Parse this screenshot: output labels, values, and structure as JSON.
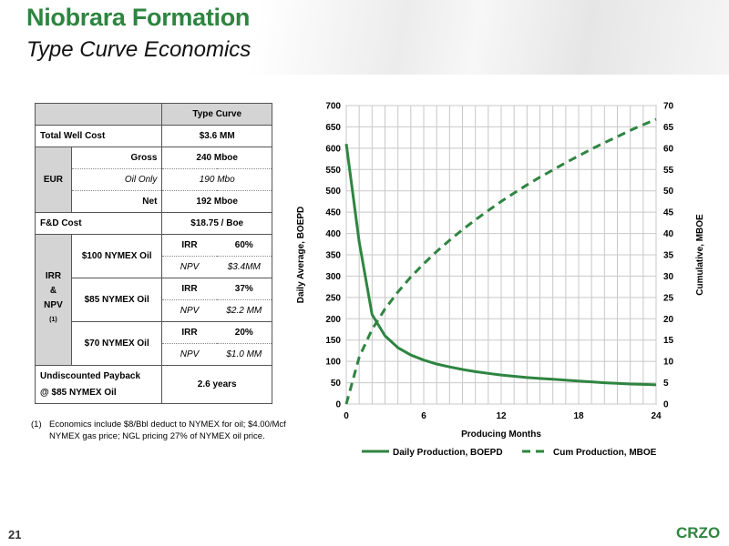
{
  "header": {
    "title": "Niobrara Formation",
    "subtitle": "Type Curve Economics"
  },
  "table": {
    "header_col": "Type Curve",
    "total_well_cost_label": "Total Well Cost",
    "total_well_cost_value": "$3.6 MM",
    "eur_label": "EUR",
    "eur_gross_label": "Gross",
    "eur_gross_value": "240 Mboe",
    "eur_oil_label": "Oil Only",
    "eur_oil_value": "190 Mbo",
    "eur_net_label": "Net",
    "eur_net_value": "192 Mboe",
    "fd_label": "F&D Cost",
    "fd_value": "$18.75 / Boe",
    "irr_group_label_1": "IRR",
    "irr_group_label_2": "&",
    "irr_group_label_3": "NPV",
    "irr_group_sup": "(1)",
    "scenarios": [
      {
        "label": "$100 NYMEX Oil",
        "irr_label": "IRR",
        "irr": "60%",
        "npv_label": "NPV",
        "npv": "$3.4MM"
      },
      {
        "label": "$85 NYMEX Oil",
        "irr_label": "IRR",
        "irr": "37%",
        "npv_label": "NPV",
        "npv": "$2.2 MM"
      },
      {
        "label": "$70 NYMEX Oil",
        "irr_label": "IRR",
        "irr": "20%",
        "npv_label": "NPV",
        "npv": "$1.0 MM"
      }
    ],
    "payback_label_1": "Undiscounted Payback",
    "payback_label_2": "@ $85 NYMEX Oil",
    "payback_value": "2.6 years"
  },
  "footnote": {
    "num": "(1)",
    "text": "Economics include $8/Bbl deduct to NYMEX for oil; $4.00/Mcf NYMEX gas price; NGL pricing 27% of NYMEX oil price."
  },
  "footer": {
    "page_number": "21",
    "logo": "CRZO"
  },
  "colors": {
    "brand_green": "#2e8540",
    "series_green": "#2e8540"
  },
  "chart_data": {
    "type": "line",
    "xlabel": "Producing Months",
    "ylabel": "Daily Average,  BOEPD",
    "y2label": "Cumulative, MBOE",
    "xlim": [
      0,
      24
    ],
    "ylim": [
      0,
      700
    ],
    "y2lim": [
      0,
      70
    ],
    "xticks": [
      0,
      6,
      12,
      18,
      24
    ],
    "yticks": [
      0,
      50,
      100,
      150,
      200,
      250,
      300,
      350,
      400,
      450,
      500,
      550,
      600,
      650,
      700
    ],
    "y2ticks": [
      0,
      5,
      10,
      15,
      20,
      25,
      30,
      35,
      40,
      45,
      50,
      55,
      60,
      65,
      70
    ],
    "grid": true,
    "legend": "bottom",
    "series": [
      {
        "name": "Daily Production, BOEPD",
        "axis": "left",
        "style": "solid",
        "x": [
          0,
          1,
          2,
          3,
          4,
          5,
          6,
          7,
          8,
          9,
          10,
          11,
          12,
          13,
          14,
          15,
          16,
          17,
          18,
          19,
          20,
          21,
          22,
          23,
          24
        ],
        "y": [
          610,
          380,
          210,
          160,
          132,
          115,
          103,
          94,
          87,
          81,
          76,
          72,
          68,
          65,
          62,
          60,
          58,
          56,
          54,
          52,
          50,
          48.5,
          47,
          46,
          45
        ]
      },
      {
        "name": "Cum Production, MBOE",
        "axis": "right",
        "style": "dashed",
        "x": [
          0,
          1,
          2,
          3,
          4,
          5,
          6,
          7,
          8,
          9,
          10,
          11,
          12,
          13,
          14,
          15,
          16,
          17,
          18,
          19,
          20,
          21,
          22,
          23,
          24
        ],
        "y": [
          0,
          11,
          17.5,
          22.3,
          26.3,
          29.8,
          32.9,
          35.8,
          38.4,
          40.9,
          43.2,
          45.4,
          47.5,
          49.5,
          51.4,
          53.2,
          54.9,
          56.6,
          58.2,
          59.8,
          61.3,
          62.7,
          64.2,
          65.5,
          66.8
        ]
      }
    ]
  }
}
